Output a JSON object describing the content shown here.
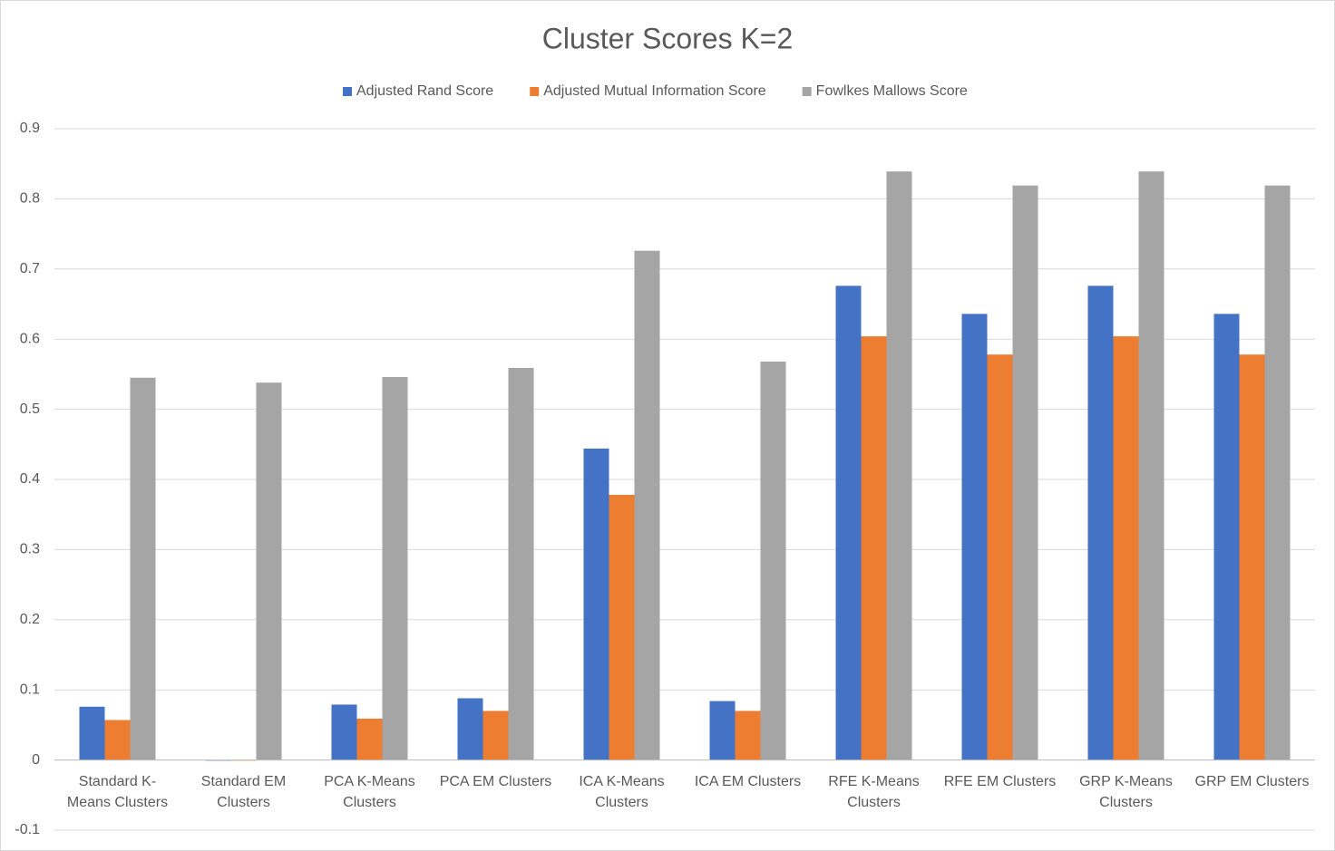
{
  "chart_data": {
    "type": "bar",
    "title": "Cluster Scores K=2",
    "categories": [
      "Standard K-Means Clusters",
      "Standard EM Clusters",
      "PCA K-Means Clusters",
      "PCA EM Clusters",
      "ICA K-Means Clusters",
      "ICA EM Clusters",
      "RFE K-Means Clusters",
      "RFE EM Clusters",
      "GRP K-Means Clusters",
      "GRP EM Clusters"
    ],
    "series": [
      {
        "name": "Adjusted Rand Score",
        "color": "#4472c4",
        "values": [
          0.076,
          -0.001,
          0.079,
          0.088,
          0.444,
          0.084,
          0.676,
          0.636,
          0.676,
          0.636
        ]
      },
      {
        "name": "Adjusted Mutual Information Score",
        "color": "#ed7d31",
        "values": [
          0.057,
          -0.001,
          0.059,
          0.07,
          0.378,
          0.07,
          0.604,
          0.578,
          0.604,
          0.578
        ]
      },
      {
        "name": "Fowlkes Mallows Score",
        "color": "#a5a5a5",
        "values": [
          0.545,
          0.538,
          0.546,
          0.559,
          0.726,
          0.568,
          0.839,
          0.819,
          0.839,
          0.819
        ]
      }
    ],
    "ylim": [
      -0.1,
      0.9
    ],
    "yticks": [
      -0.1,
      0,
      0.1,
      0.2,
      0.3,
      0.4,
      0.5,
      0.6,
      0.7,
      0.8,
      0.9
    ],
    "grid": true,
    "legend": "top"
  }
}
